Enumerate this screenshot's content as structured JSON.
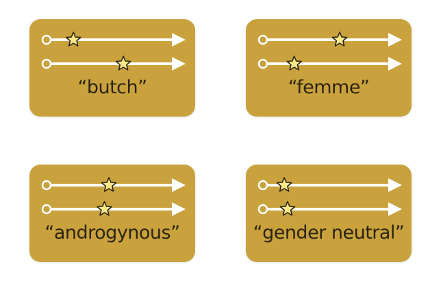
{
  "colors": {
    "card": "#c9a23e",
    "line": "#ffffff",
    "star_fill": "#fbe889",
    "star_stroke": "#2b2410",
    "text": "#2b2410"
  },
  "icons": [
    "circle-origin-icon",
    "arrow-line-icon",
    "star-icon"
  ],
  "cards": [
    {
      "label": "“butch”",
      "star_positions": [
        0.1,
        0.55
      ]
    },
    {
      "label": "“femme”",
      "star_positions": [
        0.55,
        0.14
      ]
    },
    {
      "label": "“androgynous”",
      "star_positions": [
        0.42,
        0.38
      ]
    },
    {
      "label": "“gender neutral”",
      "star_positions": [
        0.05,
        0.08
      ]
    }
  ]
}
